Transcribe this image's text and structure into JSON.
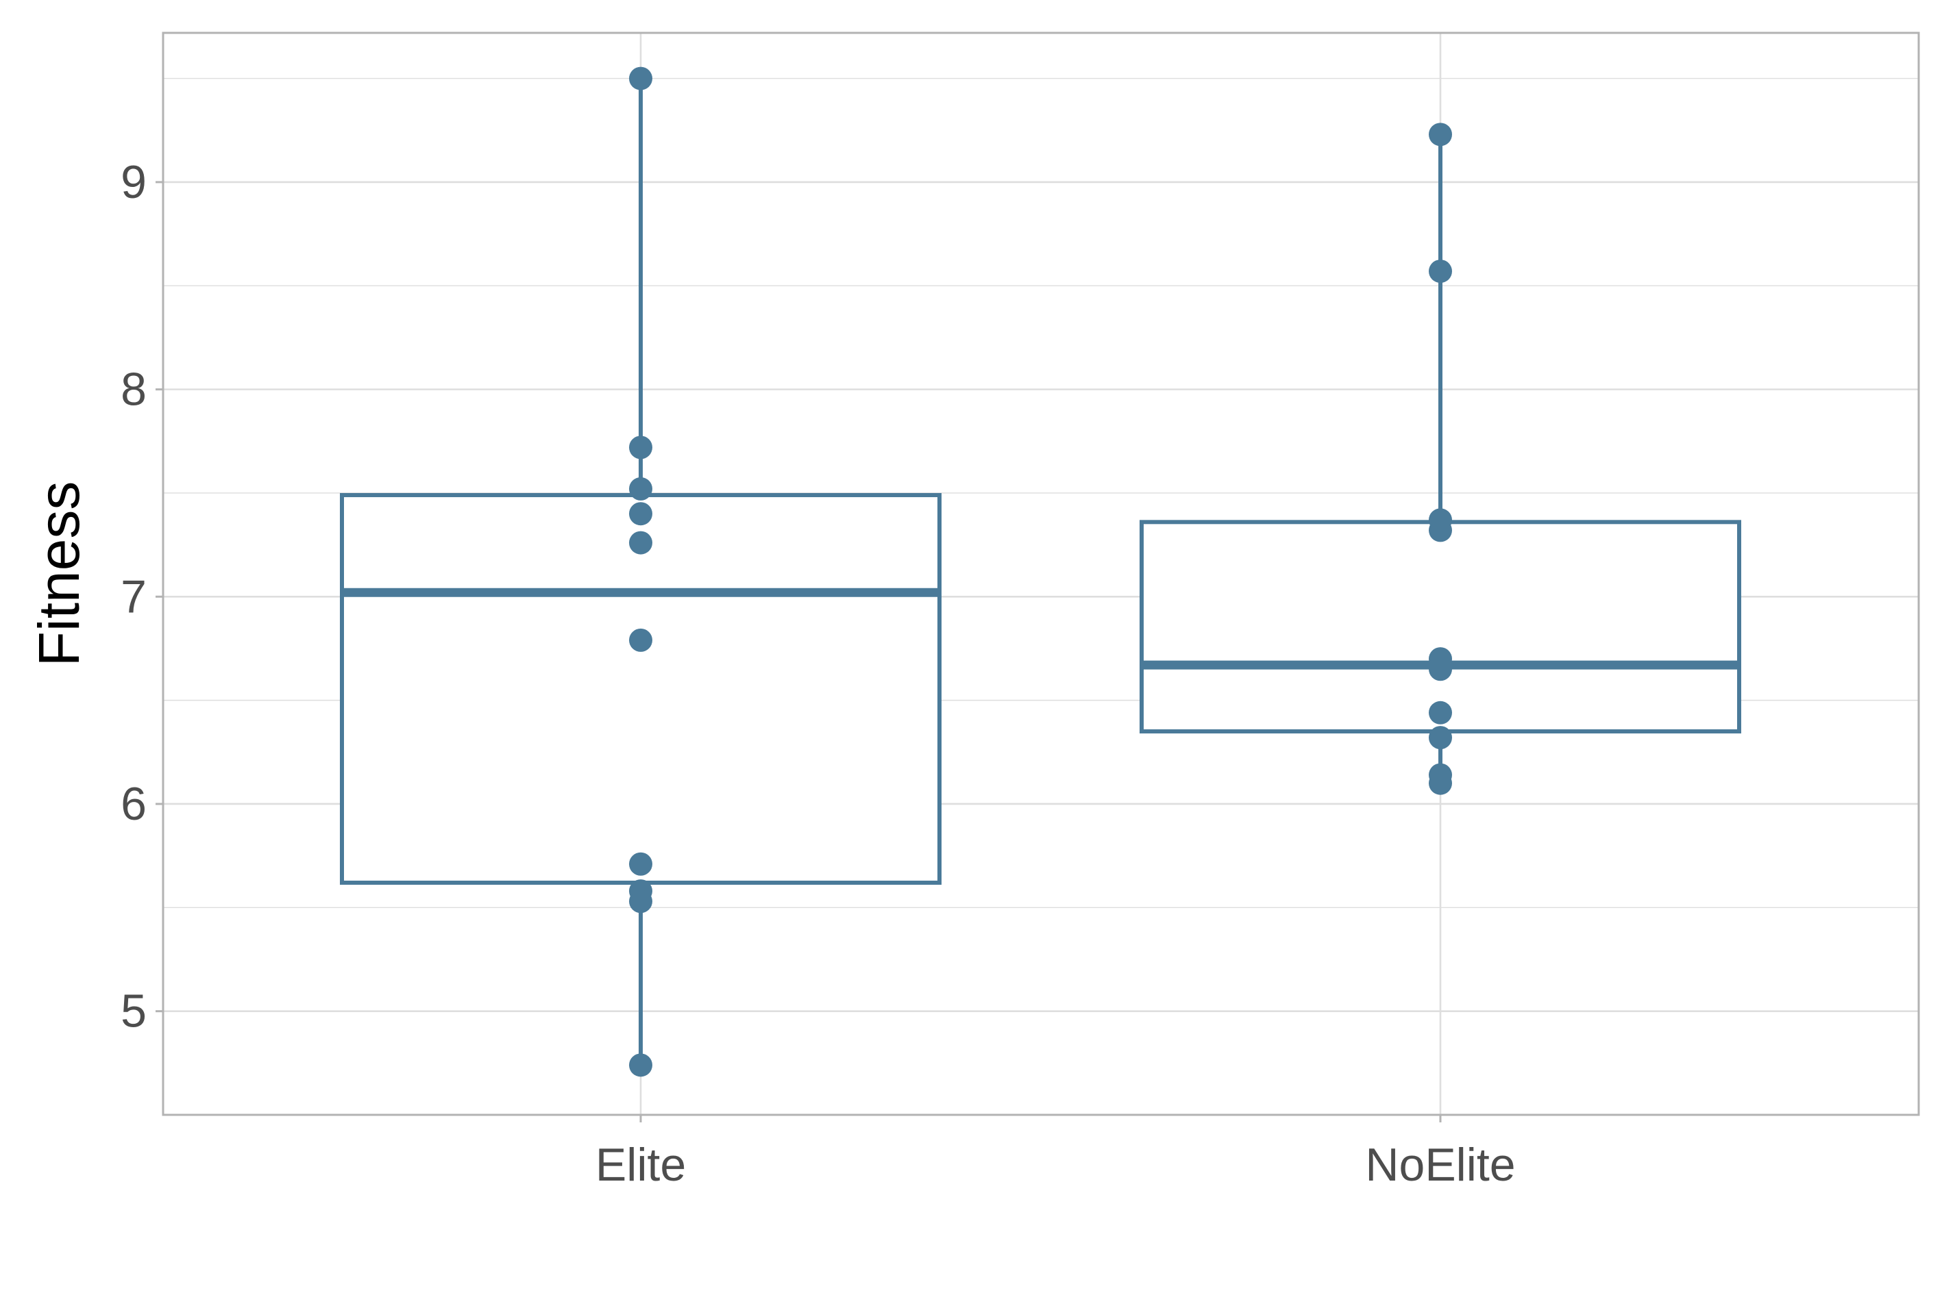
{
  "chart_data": {
    "type": "box",
    "title": "",
    "xlabel": "",
    "ylabel": "Fitness",
    "ylim": [
      4.5,
      9.72
    ],
    "y_ticks": [
      5,
      6,
      7,
      8,
      9
    ],
    "grid": true,
    "legend": "none",
    "colors": {
      "series": "#4a7a99",
      "grid": "#dedede",
      "panel_border": "#b3b3b3",
      "tick_text": "#4d4d4d",
      "axis_title": "#000000"
    },
    "categories": [
      "Elite",
      "NoElite"
    ],
    "boxes": [
      {
        "category": "Elite",
        "whisker_low": 4.74,
        "q1": 5.62,
        "median": 7.02,
        "q3": 7.49,
        "whisker_high": 9.5,
        "points": [
          9.5,
          7.72,
          7.52,
          7.4,
          7.26,
          6.79,
          5.71,
          5.58,
          5.53,
          4.74
        ]
      },
      {
        "category": "NoElite",
        "whisker_low": 6.1,
        "q1": 6.35,
        "median": 6.67,
        "q3": 7.36,
        "whisker_high": 9.23,
        "points": [
          9.23,
          8.57,
          7.37,
          7.32,
          6.7,
          6.65,
          6.44,
          6.32,
          6.14,
          6.1
        ]
      }
    ]
  }
}
